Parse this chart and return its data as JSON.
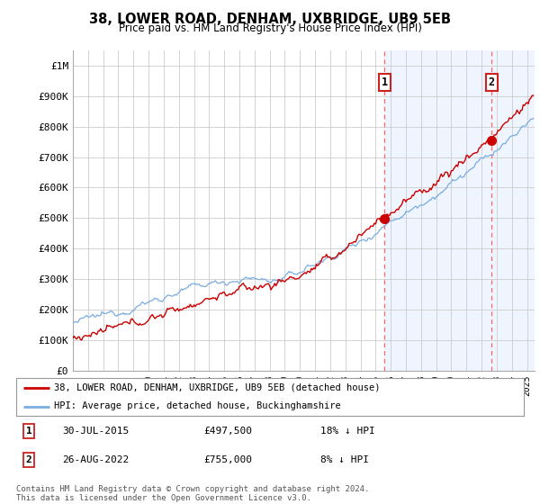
{
  "title": "38, LOWER ROAD, DENHAM, UXBRIDGE, UB9 5EB",
  "subtitle": "Price paid vs. HM Land Registry's House Price Index (HPI)",
  "ylabel_ticks": [
    "£0",
    "£100K",
    "£200K",
    "£300K",
    "£400K",
    "£500K",
    "£600K",
    "£700K",
    "£800K",
    "£900K",
    "£1M"
  ],
  "ytick_values": [
    0,
    100000,
    200000,
    300000,
    400000,
    500000,
    600000,
    700000,
    800000,
    900000,
    1000000
  ],
  "ylim": [
    0,
    1050000
  ],
  "xlim_start": 1995.0,
  "xlim_end": 2025.5,
  "hpi_color": "#7aade0",
  "price_color": "#cc0000",
  "dashed_color": "#ff6666",
  "shade_color": "#ddeeff",
  "marker1_x": 2015.58,
  "marker1_y": 497500,
  "marker1_label": "1",
  "marker1_date": "30-JUL-2015",
  "marker1_price": "£497,500",
  "marker1_hpi": "18% ↓ HPI",
  "marker2_x": 2022.65,
  "marker2_y": 755000,
  "marker2_label": "2",
  "marker2_date": "26-AUG-2022",
  "marker2_price": "£755,000",
  "marker2_hpi": "8% ↓ HPI",
  "legend_label_price": "38, LOWER ROAD, DENHAM, UXBRIDGE, UB9 5EB (detached house)",
  "legend_label_hpi": "HPI: Average price, detached house, Buckinghamshire",
  "footnote": "Contains HM Land Registry data © Crown copyright and database right 2024.\nThis data is licensed under the Open Government Licence v3.0.",
  "background_color": "#ffffff",
  "grid_color": "#cccccc"
}
